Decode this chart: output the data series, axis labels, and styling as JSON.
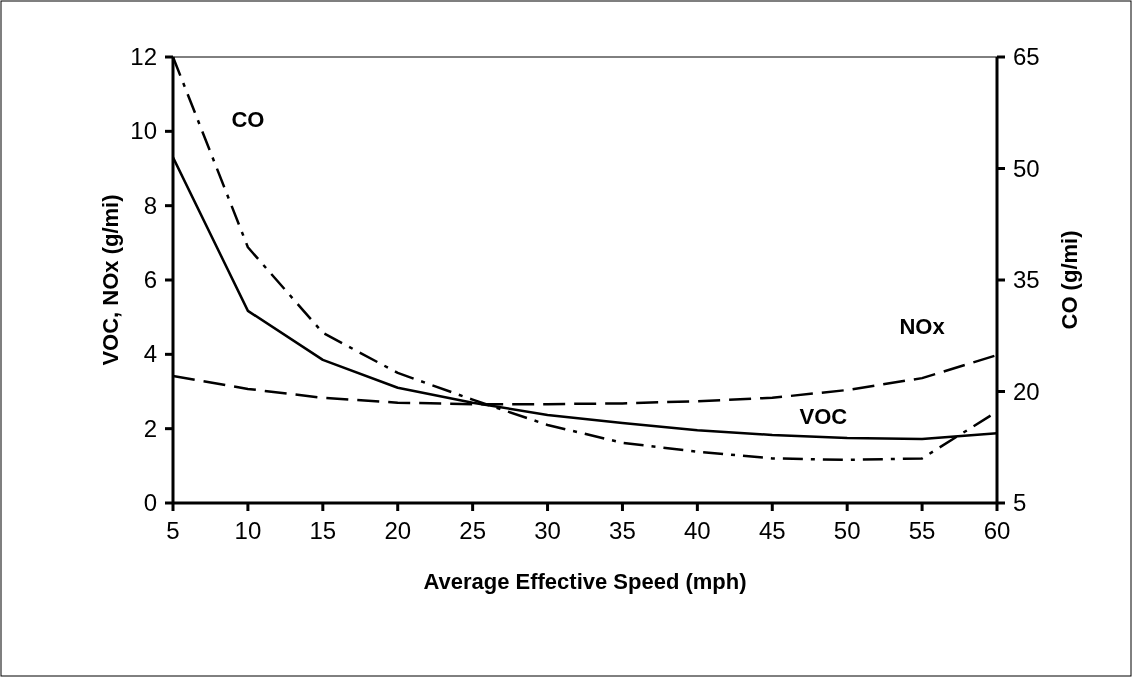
{
  "chart_data": {
    "type": "line",
    "x": [
      5,
      10,
      15,
      20,
      25,
      30,
      35,
      40,
      45,
      50,
      55,
      60
    ],
    "xlabel": "Average Effective Speed (mph)",
    "ylabel": "VOC, NOx (g/mi)",
    "y2label": "CO (g/mi)",
    "xlim": [
      5,
      60
    ],
    "xticks": [
      5,
      10,
      15,
      20,
      25,
      30,
      35,
      40,
      45,
      50,
      55,
      60
    ],
    "ylim": [
      0,
      12
    ],
    "yticks": [
      0,
      2,
      4,
      6,
      8,
      10,
      12
    ],
    "y2lim": [
      5,
      65
    ],
    "y2ticks": [
      5,
      20,
      35,
      50,
      65
    ],
    "grid": false,
    "marker": "none",
    "series": [
      {
        "name": "VOC",
        "color": "#000000",
        "line_style": "solid",
        "values": [
          9.3,
          5.17,
          3.85,
          3.1,
          2.7,
          2.37,
          2.15,
          1.96,
          1.83,
          1.75,
          1.72,
          1.88
        ]
      },
      {
        "name": "NOx",
        "color": "#000000",
        "line_style": "dashed",
        "values": [
          3.42,
          3.07,
          2.83,
          2.7,
          2.66,
          2.66,
          2.68,
          2.74,
          2.83,
          3.04,
          3.36,
          3.98
        ]
      },
      {
        "name": "CO",
        "color": "#000000",
        "line_style": "dashdot",
        "axis": "y2",
        "values": [
          65,
          39.4,
          27.9,
          22.5,
          18.9,
          15.5,
          13.1,
          11.9,
          11.0,
          10.8,
          11.0,
          17.3
        ]
      }
    ]
  }
}
